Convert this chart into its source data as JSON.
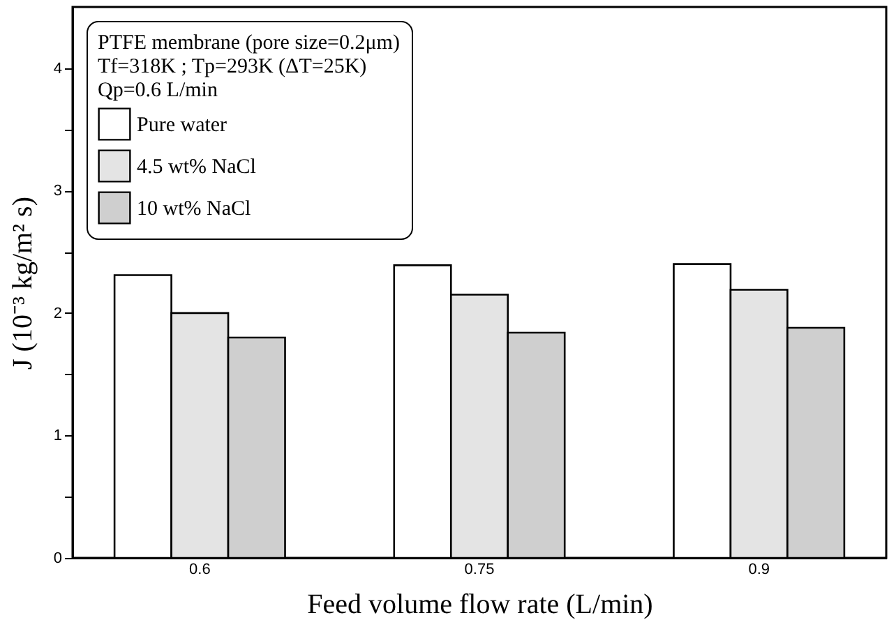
{
  "chart_data": {
    "type": "bar",
    "xlabel": "Feed volume flow rate (L/min)",
    "ylabel": "J (10⁻³ kg/m² s)",
    "annotations": [
      "PTFE membrane (pore size=0.2μm)",
      "Tf=318K ; Tp=293K (ΔT=25K)",
      "Qp=0.6 L/min"
    ],
    "categories": [
      "0.6",
      "0.75",
      "0.9"
    ],
    "series": [
      {
        "name": "Pure water",
        "color": "#ffffff",
        "values": [
          2.31,
          2.39,
          2.4
        ]
      },
      {
        "name": "4.5 wt% NaCl",
        "color": "#e4e4e4",
        "values": [
          2.0,
          2.15,
          2.19
        ]
      },
      {
        "name": "10 wt% NaCl",
        "color": "#cfcfcf",
        "values": [
          1.8,
          1.84,
          1.88
        ]
      }
    ],
    "ylim": [
      0,
      4.5
    ],
    "yticks": [
      0,
      {
        "value": 0.5,
        "label": null
      },
      1,
      {
        "value": 1.5,
        "label": null
      },
      2,
      {
        "value": 2.5,
        "label": null
      },
      3,
      {
        "value": 3.5,
        "label": null
      },
      4
    ],
    "grid": false,
    "legend": "top left"
  }
}
